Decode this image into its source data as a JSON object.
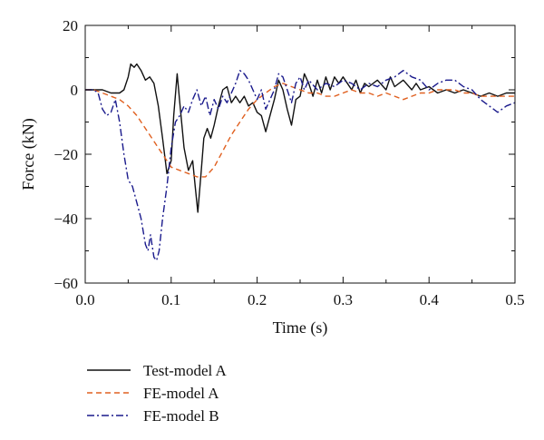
{
  "chart_data": {
    "type": "line",
    "title": "",
    "xlabel": "Time (s)",
    "ylabel": "Force (kN)",
    "xlim": [
      0.0,
      0.5
    ],
    "ylim": [
      -60,
      20
    ],
    "x_ticks": [
      0.0,
      0.1,
      0.2,
      0.3,
      0.4,
      0.5
    ],
    "x_tick_labels": [
      "0.0",
      "0.1",
      "0.2",
      "0.3",
      "0.4",
      "0.5"
    ],
    "y_ticks": [
      -60,
      -40,
      -20,
      0,
      20
    ],
    "y_tick_labels": [
      "−60",
      "−40",
      "−20",
      "0",
      "20"
    ],
    "grid": false,
    "legend_position": "below-left",
    "series": [
      {
        "name": "Test-model A",
        "color": "#111111",
        "style": "solid",
        "points": [
          [
            0.0,
            0
          ],
          [
            0.01,
            0
          ],
          [
            0.02,
            0
          ],
          [
            0.03,
            -1
          ],
          [
            0.04,
            -1
          ],
          [
            0.045,
            0
          ],
          [
            0.05,
            4
          ],
          [
            0.053,
            8
          ],
          [
            0.057,
            7
          ],
          [
            0.06,
            8
          ],
          [
            0.065,
            6
          ],
          [
            0.07,
            3
          ],
          [
            0.075,
            4
          ],
          [
            0.08,
            2
          ],
          [
            0.085,
            -5
          ],
          [
            0.09,
            -15
          ],
          [
            0.095,
            -26
          ],
          [
            0.1,
            -22
          ],
          [
            0.103,
            -8
          ],
          [
            0.107,
            5
          ],
          [
            0.11,
            -4
          ],
          [
            0.115,
            -18
          ],
          [
            0.12,
            -25
          ],
          [
            0.125,
            -22
          ],
          [
            0.128,
            -30
          ],
          [
            0.131,
            -38
          ],
          [
            0.135,
            -25
          ],
          [
            0.138,
            -15
          ],
          [
            0.142,
            -12
          ],
          [
            0.146,
            -15
          ],
          [
            0.15,
            -11
          ],
          [
            0.155,
            -5
          ],
          [
            0.16,
            0
          ],
          [
            0.165,
            1
          ],
          [
            0.17,
            -4
          ],
          [
            0.175,
            -2
          ],
          [
            0.18,
            -4
          ],
          [
            0.185,
            -2
          ],
          [
            0.19,
            -5
          ],
          [
            0.195,
            -4
          ],
          [
            0.2,
            -7
          ],
          [
            0.205,
            -8
          ],
          [
            0.21,
            -13
          ],
          [
            0.215,
            -8
          ],
          [
            0.22,
            -3
          ],
          [
            0.225,
            3
          ],
          [
            0.23,
            0
          ],
          [
            0.235,
            -6
          ],
          [
            0.24,
            -11
          ],
          [
            0.245,
            -3
          ],
          [
            0.25,
            -2
          ],
          [
            0.255,
            5
          ],
          [
            0.26,
            2
          ],
          [
            0.265,
            -2
          ],
          [
            0.27,
            3
          ],
          [
            0.275,
            -1
          ],
          [
            0.28,
            4
          ],
          [
            0.285,
            0
          ],
          [
            0.29,
            4
          ],
          [
            0.295,
            2
          ],
          [
            0.3,
            4
          ],
          [
            0.31,
            0
          ],
          [
            0.315,
            3
          ],
          [
            0.32,
            -1
          ],
          [
            0.325,
            2
          ],
          [
            0.33,
            1
          ],
          [
            0.34,
            3
          ],
          [
            0.35,
            0
          ],
          [
            0.355,
            4
          ],
          [
            0.36,
            1
          ],
          [
            0.37,
            3
          ],
          [
            0.38,
            0
          ],
          [
            0.385,
            2
          ],
          [
            0.39,
            0
          ],
          [
            0.4,
            1
          ],
          [
            0.41,
            -1
          ],
          [
            0.42,
            0
          ],
          [
            0.43,
            -1
          ],
          [
            0.44,
            0
          ],
          [
            0.45,
            -1
          ],
          [
            0.46,
            -2
          ],
          [
            0.47,
            -1
          ],
          [
            0.48,
            -2
          ],
          [
            0.49,
            -1
          ],
          [
            0.5,
            -1
          ]
        ]
      },
      {
        "name": "FE-model A",
        "color": "#e06020",
        "style": "dashed",
        "points": [
          [
            0.0,
            0
          ],
          [
            0.01,
            0
          ],
          [
            0.02,
            -1
          ],
          [
            0.03,
            -2
          ],
          [
            0.04,
            -3
          ],
          [
            0.05,
            -5
          ],
          [
            0.06,
            -8
          ],
          [
            0.07,
            -12
          ],
          [
            0.08,
            -16
          ],
          [
            0.09,
            -20
          ],
          [
            0.1,
            -24
          ],
          [
            0.11,
            -25
          ],
          [
            0.12,
            -26
          ],
          [
            0.13,
            -27
          ],
          [
            0.14,
            -27
          ],
          [
            0.15,
            -24
          ],
          [
            0.16,
            -19
          ],
          [
            0.17,
            -14
          ],
          [
            0.18,
            -10
          ],
          [
            0.19,
            -6
          ],
          [
            0.2,
            -3
          ],
          [
            0.21,
            -1
          ],
          [
            0.22,
            1
          ],
          [
            0.23,
            2
          ],
          [
            0.24,
            1
          ],
          [
            0.25,
            0
          ],
          [
            0.26,
            -1
          ],
          [
            0.27,
            -1
          ],
          [
            0.28,
            -2
          ],
          [
            0.29,
            -2
          ],
          [
            0.3,
            -1
          ],
          [
            0.31,
            0
          ],
          [
            0.32,
            -1
          ],
          [
            0.33,
            -1
          ],
          [
            0.34,
            -2
          ],
          [
            0.35,
            -1
          ],
          [
            0.36,
            -2
          ],
          [
            0.37,
            -3
          ],
          [
            0.38,
            -2
          ],
          [
            0.39,
            -1
          ],
          [
            0.4,
            -1
          ],
          [
            0.41,
            0
          ],
          [
            0.42,
            0
          ],
          [
            0.43,
            0
          ],
          [
            0.44,
            -1
          ],
          [
            0.45,
            -1
          ],
          [
            0.46,
            -2
          ],
          [
            0.47,
            -2
          ],
          [
            0.48,
            -2
          ],
          [
            0.49,
            -2
          ],
          [
            0.5,
            -2
          ]
        ]
      },
      {
        "name": "FE-model B",
        "color": "#1a1a8c",
        "style": "dashdot",
        "points": [
          [
            0.0,
            0
          ],
          [
            0.01,
            0
          ],
          [
            0.015,
            -1
          ],
          [
            0.02,
            -6
          ],
          [
            0.025,
            -8
          ],
          [
            0.03,
            -7
          ],
          [
            0.035,
            -3
          ],
          [
            0.04,
            -10
          ],
          [
            0.045,
            -20
          ],
          [
            0.05,
            -28
          ],
          [
            0.055,
            -30
          ],
          [
            0.06,
            -35
          ],
          [
            0.065,
            -40
          ],
          [
            0.07,
            -48
          ],
          [
            0.073,
            -50
          ],
          [
            0.076,
            -45
          ],
          [
            0.08,
            -52
          ],
          [
            0.083,
            -53
          ],
          [
            0.086,
            -50
          ],
          [
            0.09,
            -40
          ],
          [
            0.095,
            -30
          ],
          [
            0.1,
            -18
          ],
          [
            0.105,
            -10
          ],
          [
            0.11,
            -8
          ],
          [
            0.115,
            -5
          ],
          [
            0.12,
            -7
          ],
          [
            0.125,
            -3
          ],
          [
            0.13,
            0
          ],
          [
            0.135,
            -5
          ],
          [
            0.14,
            -2
          ],
          [
            0.145,
            -8
          ],
          [
            0.15,
            -3
          ],
          [
            0.155,
            -6
          ],
          [
            0.16,
            -2
          ],
          [
            0.165,
            -4
          ],
          [
            0.17,
            -1
          ],
          [
            0.175,
            2
          ],
          [
            0.18,
            6
          ],
          [
            0.185,
            5
          ],
          [
            0.19,
            3
          ],
          [
            0.195,
            0
          ],
          [
            0.2,
            -3
          ],
          [
            0.205,
            0
          ],
          [
            0.21,
            -6
          ],
          [
            0.215,
            -3
          ],
          [
            0.22,
            0
          ],
          [
            0.225,
            5
          ],
          [
            0.23,
            4
          ],
          [
            0.235,
            0
          ],
          [
            0.24,
            -4
          ],
          [
            0.245,
            2
          ],
          [
            0.25,
            4
          ],
          [
            0.255,
            0
          ],
          [
            0.26,
            3
          ],
          [
            0.27,
            0
          ],
          [
            0.28,
            2
          ],
          [
            0.29,
            1
          ],
          [
            0.3,
            3
          ],
          [
            0.31,
            2
          ],
          [
            0.32,
            0
          ],
          [
            0.33,
            2
          ],
          [
            0.34,
            1
          ],
          [
            0.35,
            3
          ],
          [
            0.36,
            4
          ],
          [
            0.37,
            6
          ],
          [
            0.38,
            4
          ],
          [
            0.39,
            3
          ],
          [
            0.4,
            0
          ],
          [
            0.41,
            2
          ],
          [
            0.42,
            3
          ],
          [
            0.43,
            3
          ],
          [
            0.44,
            1
          ],
          [
            0.45,
            0
          ],
          [
            0.46,
            -3
          ],
          [
            0.47,
            -5
          ],
          [
            0.48,
            -7
          ],
          [
            0.49,
            -5
          ],
          [
            0.5,
            -4
          ]
        ]
      }
    ]
  }
}
